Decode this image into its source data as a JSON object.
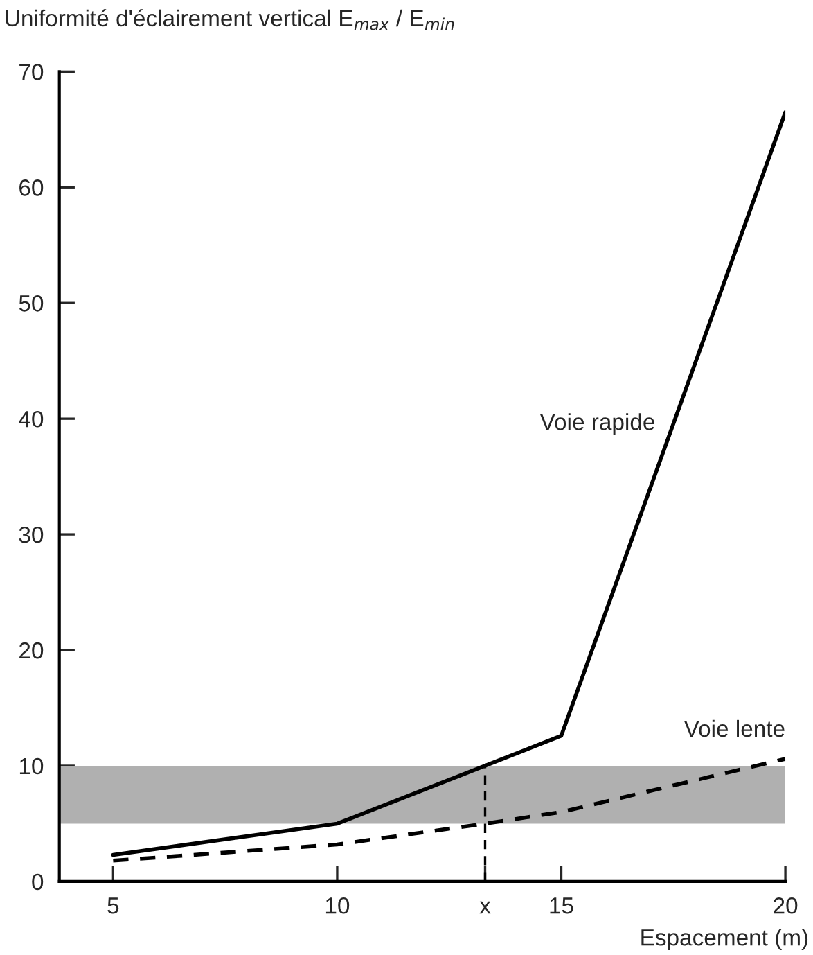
{
  "chart_data": {
    "type": "line",
    "ylabel": "Uniformité d'éclairement vertical E$_{max}$ / E$_{min}$",
    "xlabel": "Espacement (m)",
    "xlim": [
      3.8,
      20
    ],
    "xticks": [
      5,
      10,
      {
        "value": 13.3,
        "label": "x"
      },
      15,
      20
    ],
    "ylim": [
      0,
      70
    ],
    "yticks": [
      0,
      10,
      20,
      30,
      40,
      50,
      60,
      70
    ],
    "grid": false,
    "legend": false,
    "bands": [
      {
        "axis": "y",
        "from": 5,
        "to": 10,
        "color": "#b0b0b0"
      }
    ],
    "series": [
      {
        "name": "Voie rapide",
        "color": "#000000",
        "line_style": "solid",
        "x": [
          5,
          10,
          13.3,
          15,
          20
        ],
        "values": [
          2.3,
          5,
          10,
          12.6,
          66.5
        ]
      },
      {
        "name": "Voie lente",
        "color": "#000000",
        "line_style": "dashed",
        "x": [
          5,
          10,
          13.3,
          15,
          20
        ],
        "values": [
          1.8,
          3.2,
          5,
          6,
          10.6
        ]
      },
      {
        "color": "#000000",
        "line_style": "dashed",
        "x": [
          13.3,
          13.3
        ],
        "values": [
          0,
          10
        ]
      }
    ]
  }
}
